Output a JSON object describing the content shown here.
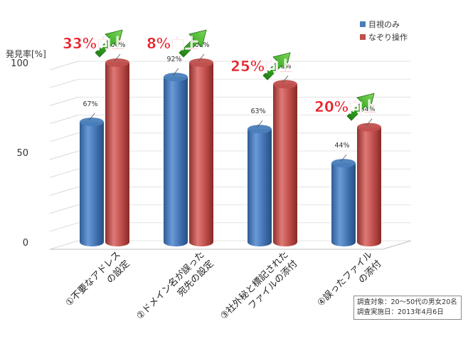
{
  "chart_data": {
    "type": "bar",
    "ylabel": "発見率[%]",
    "ylim": [
      0,
      100
    ],
    "yticks": [
      "0",
      "50",
      "100"
    ],
    "grid": true,
    "legend_position": "top-right",
    "categories": [
      {
        "line1": "①不要なアドレス",
        "line2": "の設定"
      },
      {
        "line1": "②ドメイン名が誤った",
        "line2": "宛先の設定"
      },
      {
        "line1": "③社外秘と標記された",
        "line2": "ファイルの添付"
      },
      {
        "line1": "④誤ったファイル",
        "line2": "の添付"
      }
    ],
    "series": [
      {
        "name": "目視のみ",
        "color": "#4a7ebb",
        "values": [
          67,
          92,
          63,
          44
        ],
        "labels": [
          "67%",
          "92%",
          "63%",
          "44%"
        ]
      },
      {
        "name": "なぞり操作",
        "color": "#c0504d",
        "values": [
          100,
          100,
          88,
          64
        ],
        "labels": [
          "100%",
          "100%",
          "88%",
          "64%"
        ]
      }
    ],
    "annotations": [
      "33%向上",
      "8%向上",
      "25%向上",
      "20%向上"
    ],
    "annotation_color": "#e8202a",
    "arrow_color": "#2f9e1e"
  },
  "survey": {
    "line1": "調査対象：20～50代の男女20名",
    "line2": "調査実施日：2013年4月6日"
  }
}
